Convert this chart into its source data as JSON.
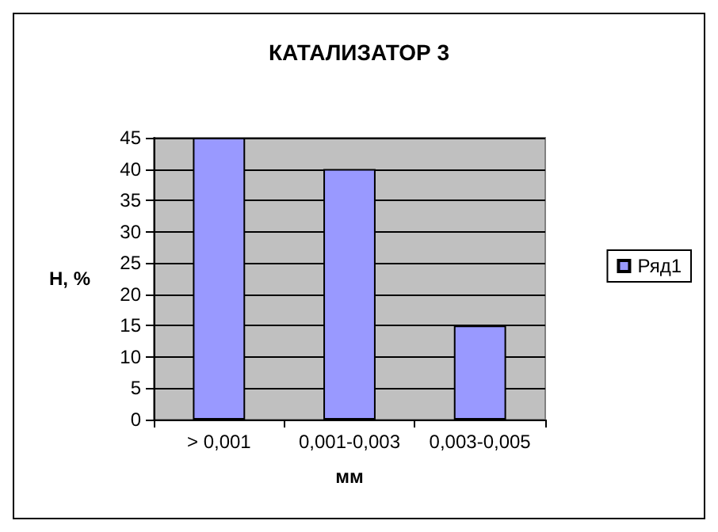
{
  "chart_data": {
    "type": "bar",
    "title": "КАТАЛИЗАТОР 3",
    "xlabel": "мм",
    "ylabel": "H, %",
    "categories": [
      "> 0,001",
      "0,001-0,003",
      "0,003-0,005"
    ],
    "series": [
      {
        "name": "Ряд1",
        "color": "#9999ff",
        "values": [
          45,
          40,
          15
        ]
      }
    ],
    "ylim": [
      0,
      45
    ],
    "yticks": [
      0,
      5,
      10,
      15,
      20,
      25,
      30,
      35,
      40,
      45
    ],
    "grid": "y",
    "legend": "right"
  }
}
